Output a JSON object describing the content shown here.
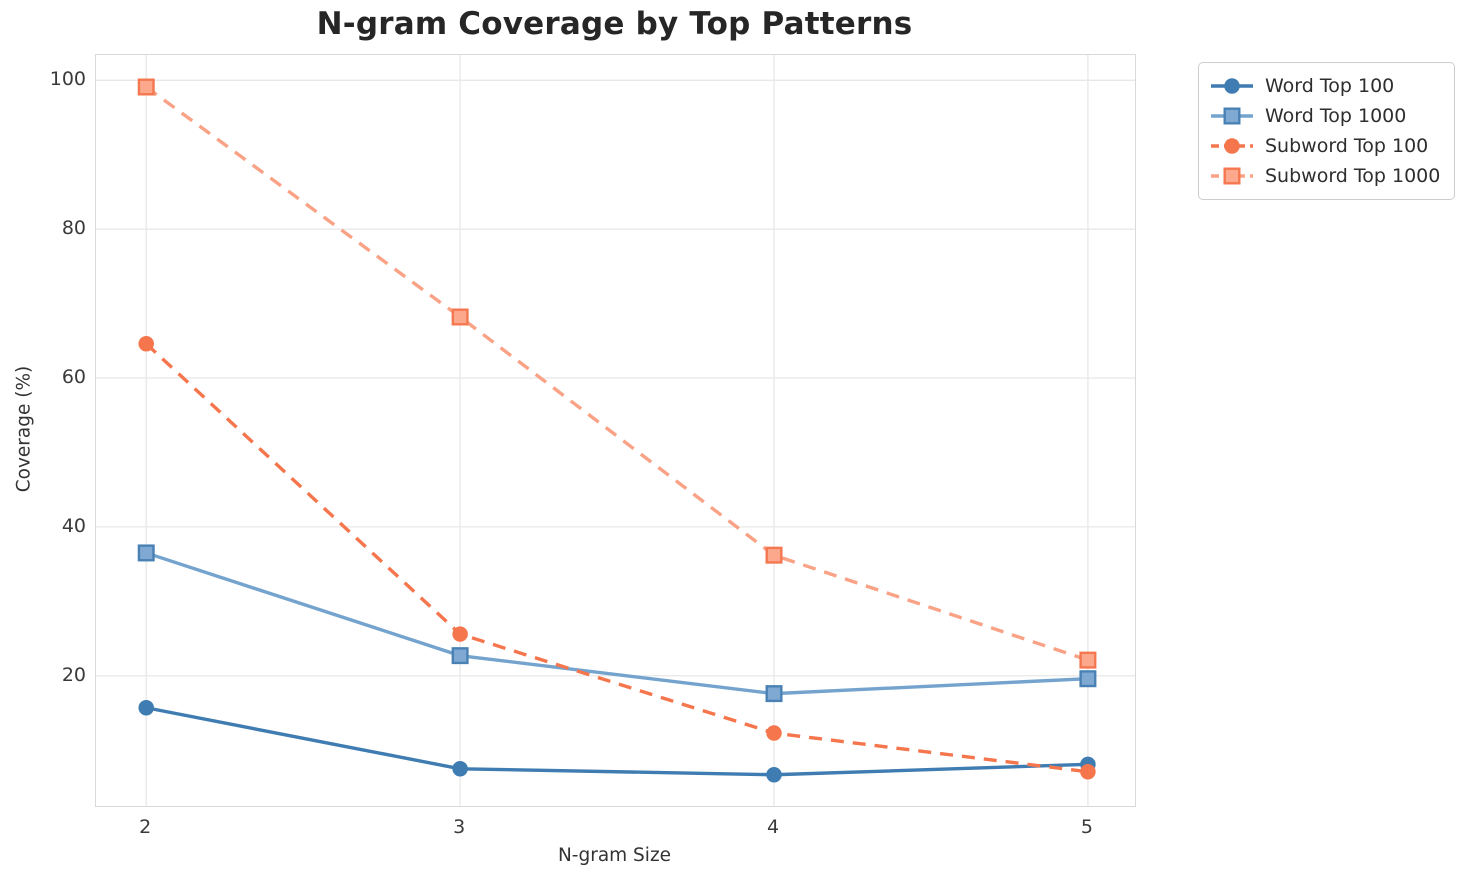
{
  "chart_data": {
    "type": "line",
    "title": "N-gram Coverage by Top Patterns",
    "xlabel": "N-gram Size",
    "ylabel": "Coverage (%)",
    "x": [
      2,
      3,
      4,
      5
    ],
    "xticks": [
      "2",
      "3",
      "4",
      "5"
    ],
    "yticks": [
      20,
      40,
      60,
      80,
      100
    ],
    "xlim": [
      1.84,
      5.15
    ],
    "ylim": [
      2.5,
      103.4
    ],
    "grid": true,
    "legend_position": "outside upper right",
    "series": [
      {
        "name": "Word Top 100",
        "values": [
          15.7,
          7.5,
          6.7,
          8.1
        ],
        "color": "#3f7cb1",
        "line_style": "solid",
        "marker": "circle",
        "marker_fill": "#3f7cb1",
        "marker_edge": "#3f7cb1"
      },
      {
        "name": "Word Top 1000",
        "values": [
          36.5,
          22.7,
          17.6,
          19.6
        ],
        "color": "#74a3ce",
        "line_style": "solid",
        "marker": "square",
        "marker_fill": "#7fa9d2",
        "marker_edge": "#4a81b4"
      },
      {
        "name": "Subword Top 100",
        "values": [
          64.6,
          25.6,
          12.3,
          7.1
        ],
        "color": "#f5764d",
        "line_style": "dashed",
        "marker": "circle",
        "marker_fill": "#f5764d",
        "marker_edge": "#f5764d"
      },
      {
        "name": "Subword Top 1000",
        "values": [
          99.1,
          68.2,
          36.2,
          22.1
        ],
        "color": "#f9a285",
        "line_style": "dashed",
        "marker": "square",
        "marker_fill": "#fba88c",
        "marker_edge": "#f4774f"
      }
    ],
    "colors": {
      "background": "#ffffff",
      "grid": "#e8e8e8",
      "spine": "#d9d9d9",
      "title_text": "#262626",
      "tick_text": "#3a3a3a",
      "legend_border": "#cccccc"
    }
  }
}
